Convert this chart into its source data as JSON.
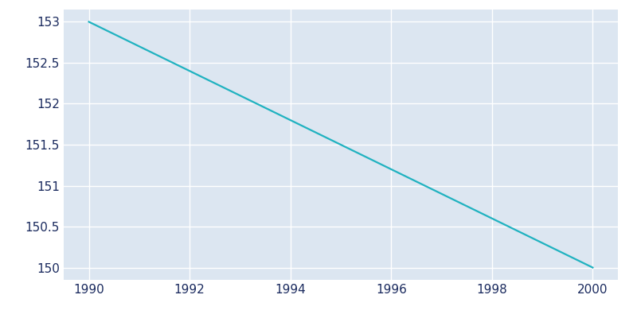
{
  "x": [
    1990,
    2000
  ],
  "y": [
    153,
    150
  ],
  "line_color": "#20b2c0",
  "background_color": "#dce6f1",
  "figure_background_color": "#ffffff",
  "text_color": "#1a2a5e",
  "grid_color": "#ffffff",
  "xlim": [
    1989.5,
    2000.5
  ],
  "ylim": [
    149.85,
    153.15
  ],
  "xticks": [
    1990,
    1992,
    1994,
    1996,
    1998,
    2000
  ],
  "yticks": [
    150,
    150.5,
    151,
    151.5,
    152,
    152.5,
    153
  ],
  "line_width": 1.6
}
